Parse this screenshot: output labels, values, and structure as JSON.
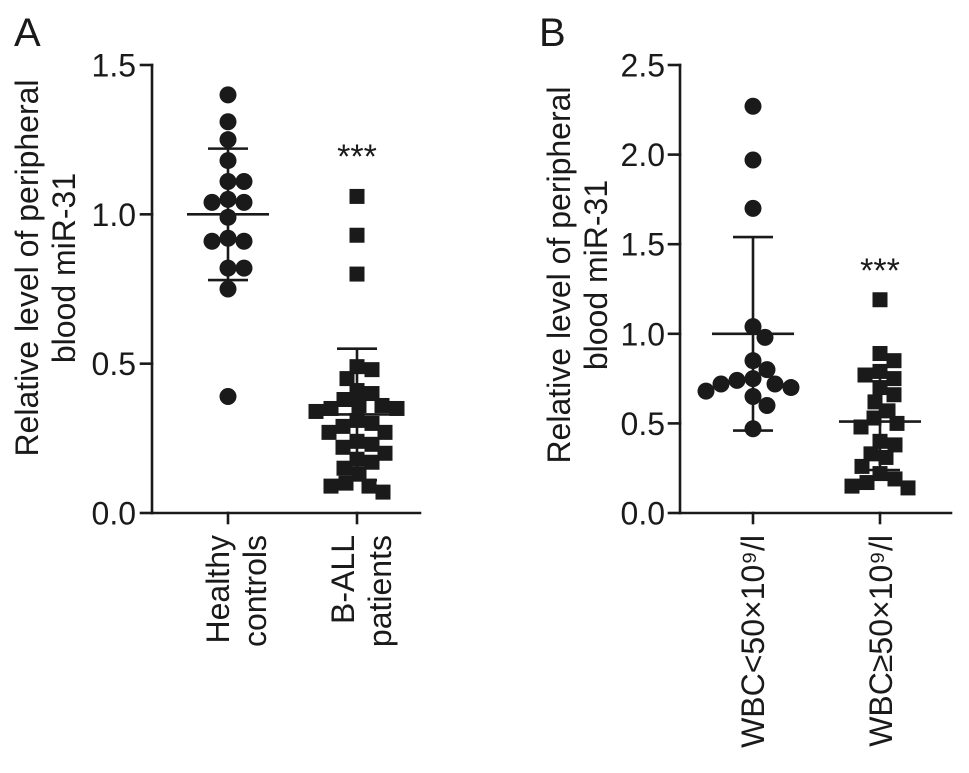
{
  "colors": {
    "ink": "#1a1a1a",
    "background": "#ffffff"
  },
  "chart_data": [
    {
      "panel_label": "A",
      "type": "scatter",
      "ylabel": [
        "Relative level of peripheral",
        "blood miR-31"
      ],
      "xlabel": "",
      "ylim": [
        0,
        1.5
      ],
      "yticks": [
        0,
        0.5,
        1.0,
        1.5
      ],
      "ytick_labels": [
        "0.0",
        "0.5",
        "1.0",
        "1.5"
      ],
      "grid": false,
      "groups": [
        {
          "label_lines": [
            "Healthy",
            "controls"
          ],
          "marker": "circle",
          "values": [
            1.4,
            1.31,
            1.25,
            1.18,
            1.11,
            1.11,
            1.05,
            1.04,
            1.04,
            0.99,
            0.92,
            0.91,
            0.91,
            0.82,
            0.82,
            0.75,
            0.39
          ],
          "mean": 1.0,
          "sd": 0.22
        },
        {
          "label_lines": [
            "B-ALL",
            "patients"
          ],
          "marker": "square",
          "values": [
            1.06,
            0.93,
            0.8,
            0.49,
            0.48,
            0.45,
            0.41,
            0.4,
            0.38,
            0.36,
            0.36,
            0.35,
            0.35,
            0.34,
            0.31,
            0.3,
            0.29,
            0.27,
            0.27,
            0.24,
            0.23,
            0.22,
            0.2,
            0.18,
            0.17,
            0.15,
            0.13,
            0.1,
            0.09,
            0.09,
            0.07
          ],
          "mean": 0.33,
          "sd": 0.22,
          "significance": "***"
        }
      ]
    },
    {
      "panel_label": "B",
      "type": "scatter",
      "ylabel": [
        "Relative level of peripheral",
        "blood miR-31"
      ],
      "xlabel": "",
      "ylim": [
        0,
        2.5
      ],
      "yticks": [
        0,
        0.5,
        1.0,
        1.5,
        2.0,
        2.5
      ],
      "ytick_labels": [
        "0.0",
        "0.5",
        "1.0",
        "1.5",
        "2.0",
        "2.5"
      ],
      "grid": false,
      "groups": [
        {
          "label_lines": [
            "WBC<50×10⁹/l"
          ],
          "marker": "circle",
          "values": [
            2.27,
            1.97,
            1.7,
            1.04,
            0.98,
            0.85,
            0.8,
            0.75,
            0.74,
            0.72,
            0.72,
            0.7,
            0.68,
            0.65,
            0.6,
            0.47
          ],
          "mean": 1.0,
          "sd": 0.54
        },
        {
          "label_lines": [
            "WBC≥50×10⁹/l"
          ],
          "marker": "square",
          "values": [
            1.19,
            0.89,
            0.85,
            0.79,
            0.77,
            0.75,
            0.7,
            0.66,
            0.62,
            0.57,
            0.53,
            0.5,
            0.48,
            0.4,
            0.38,
            0.33,
            0.31,
            0.26,
            0.22,
            0.19,
            0.17,
            0.15,
            0.14
          ],
          "mean": 0.51,
          "sd": 0.27,
          "significance": "***"
        }
      ]
    }
  ]
}
